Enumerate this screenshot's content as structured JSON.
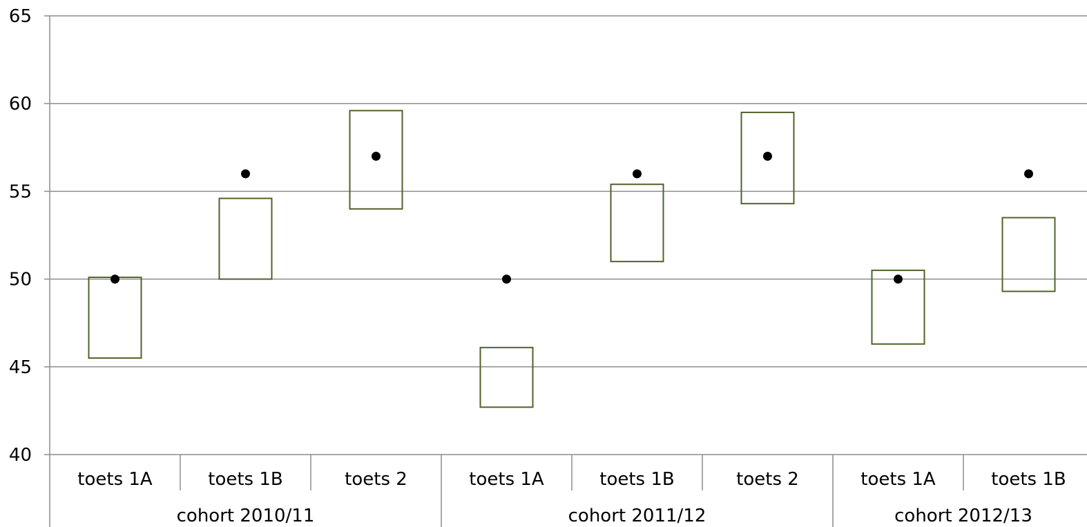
{
  "chart_data": {
    "type": "box",
    "title": "",
    "xlabel": "",
    "ylabel": "",
    "ylim": [
      40,
      65
    ],
    "yticks": [
      40,
      45,
      50,
      55,
      60,
      65
    ],
    "grid": true,
    "legend": "none",
    "groups": [
      {
        "label": "cohort 2010/11",
        "categories": [
          "toets 1A",
          "toets 1B",
          "toets 2"
        ]
      },
      {
        "label": "cohort 2011/12",
        "categories": [
          "toets 1A",
          "toets 1B",
          "toets 2"
        ]
      },
      {
        "label": "cohort 2012/13",
        "categories": [
          "toets 1A",
          "toets 1B"
        ]
      }
    ],
    "categories": [
      "toets 1A",
      "toets 1B",
      "toets 2",
      "toets 1A",
      "toets 1B",
      "toets 2",
      "toets 1A",
      "toets 1B"
    ],
    "series": [
      {
        "kind": "range",
        "low": [
          45.5,
          50.0,
          54.0,
          42.7,
          51.0,
          54.3,
          46.3,
          49.3
        ],
        "high": [
          50.1,
          54.6,
          59.6,
          46.1,
          55.4,
          59.5,
          50.5,
          53.5
        ]
      },
      {
        "kind": "point",
        "values": [
          50,
          56,
          57,
          50,
          56,
          57,
          50,
          56
        ]
      }
    ],
    "colors": {
      "box": "#4f6228",
      "point": "#000000",
      "grid": "#8c8c8c",
      "axis": "#8c8c8c"
    }
  }
}
